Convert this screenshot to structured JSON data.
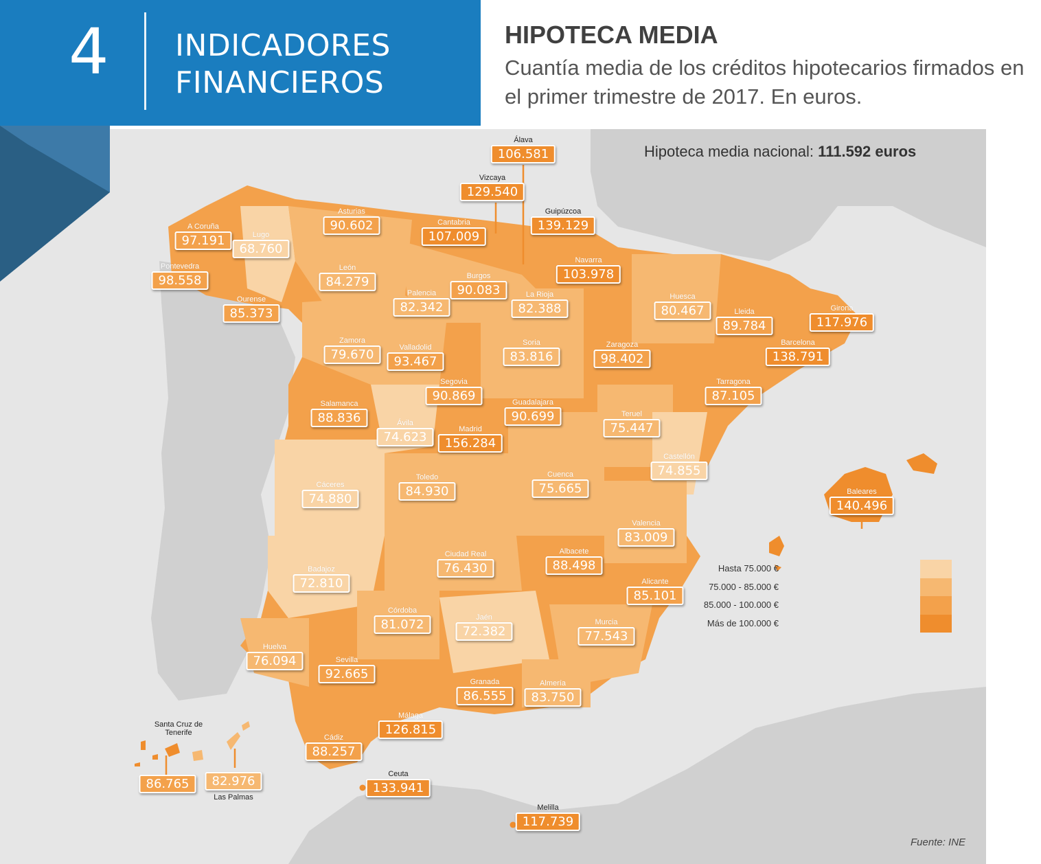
{
  "section": {
    "number": "4",
    "title_line1": "INDICADORES",
    "title_line2": "FINANCIEROS"
  },
  "header": {
    "title": "HIPOTECA MEDIA",
    "subtitle": "Cuantía media de los créditos hipotecarios firmados en el primer trimestre de 2017. En euros."
  },
  "national": {
    "label": "Hipoteca media nacional:",
    "value": "111.592 euros"
  },
  "legend": [
    {
      "label": "Hasta 75.000 €",
      "color": "#f9d4a6"
    },
    {
      "label": "75.000 - 85.000 €",
      "color": "#f6b871"
    },
    {
      "label": "85.000 - 100.000 €",
      "color": "#f3a14b"
    },
    {
      "label": "Más de 100.000 €",
      "color": "#ef8d2d"
    }
  ],
  "provinces": [
    {
      "name": "Álava",
      "value": "106.581"
    },
    {
      "name": "Vizcaya",
      "value": "129.540"
    },
    {
      "name": "Guipúzcoa",
      "value": "139.129"
    },
    {
      "name": "Cantabria",
      "value": "107.009"
    },
    {
      "name": "Asturias",
      "value": "90.602"
    },
    {
      "name": "A Coruña",
      "value": "97.191"
    },
    {
      "name": "Lugo",
      "value": "68.760"
    },
    {
      "name": "Pontevedra",
      "value": "98.558"
    },
    {
      "name": "Ourense",
      "value": "85.373"
    },
    {
      "name": "León",
      "value": "84.279"
    },
    {
      "name": "Palencia",
      "value": "82.342"
    },
    {
      "name": "Burgos",
      "value": "90.083"
    },
    {
      "name": "La Rioja",
      "value": "82.388"
    },
    {
      "name": "Navarra",
      "value": "103.978"
    },
    {
      "name": "Huesca",
      "value": "80.467"
    },
    {
      "name": "Lleida",
      "value": "89.784"
    },
    {
      "name": "Girona",
      "value": "117.976"
    },
    {
      "name": "Barcelona",
      "value": "138.791"
    },
    {
      "name": "Zamora",
      "value": "79.670"
    },
    {
      "name": "Valladolid",
      "value": "93.467"
    },
    {
      "name": "Soria",
      "value": "83.816"
    },
    {
      "name": "Zaragoza",
      "value": "98.402"
    },
    {
      "name": "Tarragona",
      "value": "87.105"
    },
    {
      "name": "Segovia",
      "value": "90.869"
    },
    {
      "name": "Salamanca",
      "value": "88.836"
    },
    {
      "name": "Ávila",
      "value": "74.623"
    },
    {
      "name": "Madrid",
      "value": "156.284"
    },
    {
      "name": "Guadalajara",
      "value": "90.699"
    },
    {
      "name": "Teruel",
      "value": "75.447"
    },
    {
      "name": "Castellón",
      "value": "74.855"
    },
    {
      "name": "Baleares",
      "value": "140.496"
    },
    {
      "name": "Cáceres",
      "value": "74.880"
    },
    {
      "name": "Toledo",
      "value": "84.930"
    },
    {
      "name": "Cuenca",
      "value": "75.665"
    },
    {
      "name": "Valencia",
      "value": "83.009"
    },
    {
      "name": "Ciudad Real",
      "value": "76.430"
    },
    {
      "name": "Albacete",
      "value": "88.498"
    },
    {
      "name": "Badajoz",
      "value": "72.810"
    },
    {
      "name": "Alicante",
      "value": "85.101"
    },
    {
      "name": "Córdoba",
      "value": "81.072"
    },
    {
      "name": "Jaén",
      "value": "72.382"
    },
    {
      "name": "Murcia",
      "value": "77.543"
    },
    {
      "name": "Huelva",
      "value": "76.094"
    },
    {
      "name": "Sevilla",
      "value": "92.665"
    },
    {
      "name": "Granada",
      "value": "86.555"
    },
    {
      "name": "Almería",
      "value": "83.750"
    },
    {
      "name": "Málaga",
      "value": "126.815"
    },
    {
      "name": "Cádiz",
      "value": "88.257"
    },
    {
      "name": "Ceuta",
      "value": "133.941"
    },
    {
      "name": "Melilla",
      "value": "117.739"
    },
    {
      "name": "Santa Cruz de Tenerife",
      "value": "86.765"
    },
    {
      "name": "Las Palmas",
      "value": "82.976"
    }
  ],
  "source": "Fuente: INE"
}
